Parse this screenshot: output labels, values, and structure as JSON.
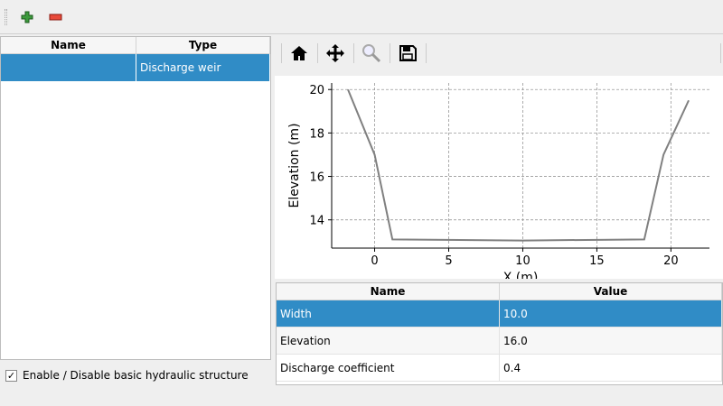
{
  "toolbar": {
    "add_icon": "plus-icon",
    "remove_icon": "minus-icon"
  },
  "structures_table": {
    "columns": [
      "Name",
      "Type"
    ],
    "rows": [
      {
        "name": "",
        "type": "Discharge weir",
        "selected": true
      }
    ]
  },
  "enable_checkbox": {
    "label": "Enable / Disable basic hydraulic structure",
    "checked": true,
    "mark": "✓"
  },
  "plot_toolbar": {
    "icons": [
      "home-icon",
      "pan-icon",
      "zoom-icon",
      "save-icon"
    ]
  },
  "properties_table": {
    "columns": [
      "Name",
      "Value"
    ],
    "rows": [
      {
        "name": "Width",
        "value": "10.0",
        "selected": true
      },
      {
        "name": "Elevation",
        "value": "16.0"
      },
      {
        "name": "Discharge coefficient",
        "value": "0.4"
      }
    ]
  },
  "chart_data": {
    "type": "line",
    "xlabel": "X (m)",
    "ylabel": "Elevation (m)",
    "xlim": [
      -2.9,
      22.6
    ],
    "ylim": [
      12.7,
      20.3
    ],
    "xticks": [
      0,
      5,
      10,
      15,
      20
    ],
    "yticks": [
      14,
      16,
      18,
      20
    ],
    "grid": true,
    "line_color": "#808080",
    "x": [
      -1.8,
      0,
      1.2,
      10,
      18.2,
      19.5,
      21.2
    ],
    "y": [
      20,
      17,
      13.1,
      13.05,
      13.1,
      17,
      19.5
    ]
  }
}
